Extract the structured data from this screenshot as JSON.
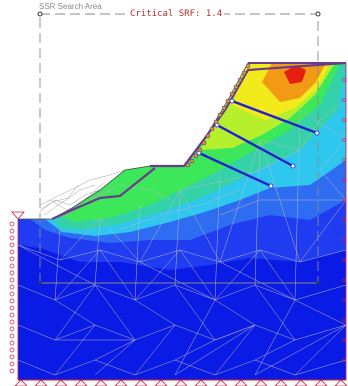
{
  "view": {
    "search_area_label": "SSR Search Area",
    "critical_srf_label": "Critical SRF: 1.4"
  },
  "colors": {
    "background": "#ffffff",
    "search_area_line": "#8a8a8a",
    "srf_label": "#b03030",
    "ground_deep": "#0b1be6",
    "ground_blue": "#1f3cf0",
    "ground_mid_blue": "#2e6cf2",
    "contour_cyan": "#2ec8ee",
    "contour_teal": "#34d2a8",
    "contour_green": "#3ce85a",
    "contour_lime": "#b6ef2c",
    "contour_yellow": "#f3ea1c",
    "contour_orange": "#f29a14",
    "contour_red": "#e51e10",
    "mesh_line": "#b8b8c8",
    "slip_surface": "#6a3b8c",
    "anchor": "#2222cc",
    "support_symbol": "#d01a4a",
    "boundary": "#e41b1b"
  },
  "icons": {
    "pin_support": "triangle-pin-icon",
    "roller_support": "roller-support-icon",
    "search_area_point": "search-point-icon"
  }
}
